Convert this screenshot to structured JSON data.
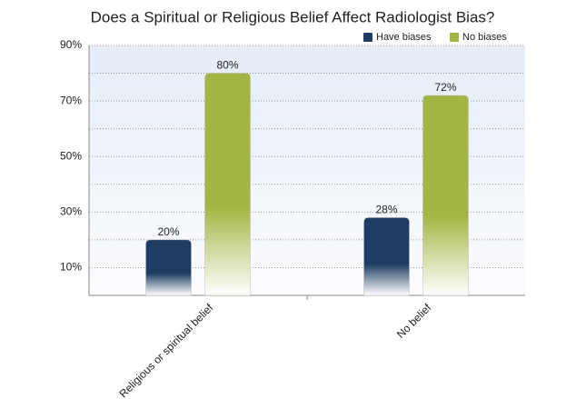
{
  "chart_data": {
    "type": "bar",
    "title": "Does a Spiritual or Religious Belief Affect Radiologist Bias?",
    "categories": [
      "Religious or spiritual belief",
      "No belief"
    ],
    "series": [
      {
        "name": "Have biases",
        "color": "#1f3d62",
        "values": [
          20,
          28
        ],
        "value_labels": [
          "20%",
          "28%"
        ]
      },
      {
        "name": "No biases",
        "color": "#a3b543",
        "values": [
          80,
          72
        ],
        "value_labels": [
          "80%",
          "72%"
        ]
      }
    ],
    "ylim": [
      0,
      90
    ],
    "yticks": [
      {
        "value": 10,
        "label": "10%"
      },
      {
        "value": 30,
        "label": "30%"
      },
      {
        "value": 50,
        "label": "50%"
      },
      {
        "value": 70,
        "label": "70%"
      },
      {
        "value": 90,
        "label": "90%"
      }
    ],
    "minor_yticks": [
      20,
      40,
      60,
      80
    ],
    "grid": true,
    "legend": "top-right"
  }
}
